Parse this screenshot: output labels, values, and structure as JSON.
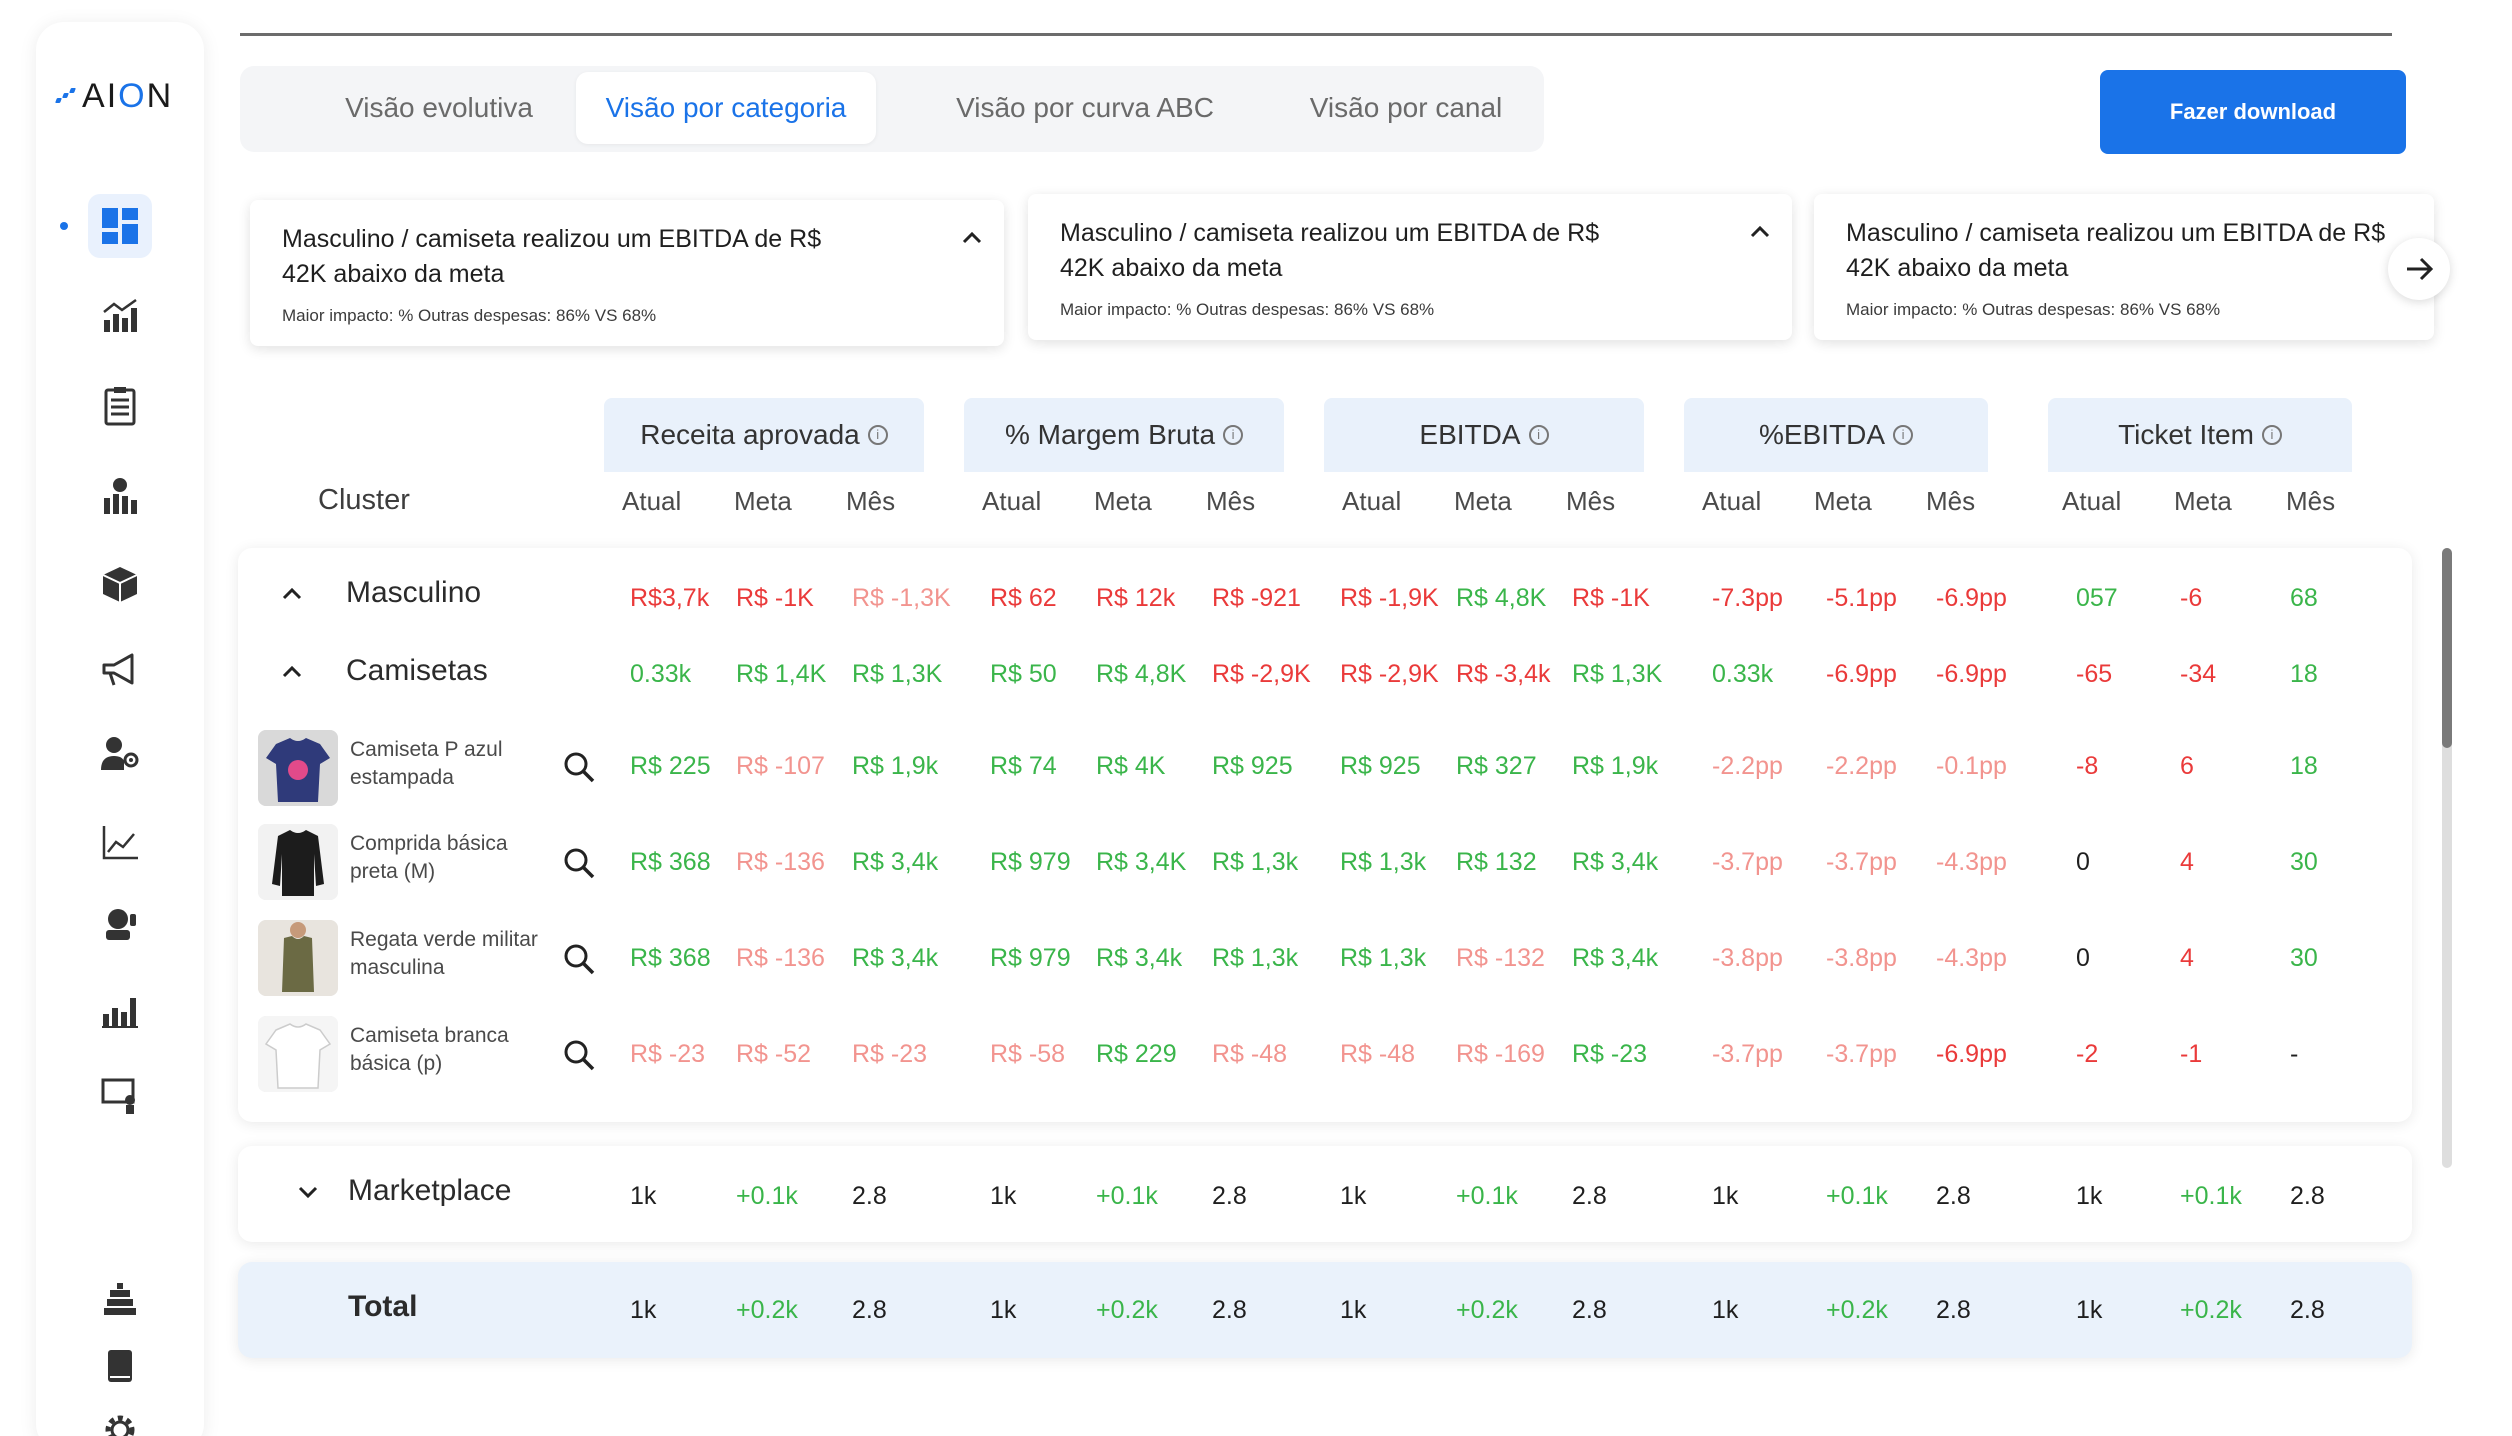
{
  "app": {
    "logo_prefix": "A",
    "logo_mid": "I",
    "logo_o": "O",
    "logo_suffix": "N"
  },
  "sidebar": {
    "icons": [
      "dashboard-icon",
      "chart-bar-icon",
      "report-list-icon",
      "finance-bars-icon",
      "package-icon",
      "megaphone-icon",
      "user-settings-icon",
      "trend-line-icon",
      "support-icon",
      "bar-chart-icon",
      "presentation-icon",
      "stack-icon",
      "book-icon",
      "gear-icon"
    ]
  },
  "tabs": [
    {
      "label": "Visão evolutiva"
    },
    {
      "label": "Visão por categoria"
    },
    {
      "label": "Visão por curva ABC"
    },
    {
      "label": "Visão por canal"
    }
  ],
  "download_label": "Fazer download",
  "insights": [
    {
      "title": "Masculino / camiseta realizou um EBITDA de R$ 42K abaixo da meta",
      "sub": "Maior impacto: % Outras despesas: 86% VS 68%"
    },
    {
      "title": "Masculino / camiseta realizou um EBITDA de R$ 42K abaixo da meta",
      "sub": "Maior impacto: % Outras despesas: 86% VS 68%"
    },
    {
      "title": "Masculino / camiseta realizou um EBITDA de R$ 42K abaixo da meta",
      "sub": "Maior impacto: % Outras despesas: 86% VS 68%"
    }
  ],
  "table": {
    "cluster_label": "Cluster",
    "metrics": [
      "Receita aprovada",
      "% Margem Bruta",
      "EBITDA",
      "%EBITDA",
      "Ticket Item"
    ],
    "subcols": [
      "Atual",
      "Meta",
      "Mês"
    ],
    "groups": [
      {
        "label": "Masculino",
        "values": [
          "R$3,7k",
          "R$ -1K",
          "R$ -1,3K",
          "R$ 62",
          "R$ 12k",
          "R$ -921",
          "R$ -1,9K",
          "R$ 4,8K",
          "R$ -1K",
          "-7.3pp",
          "-5.1pp",
          "-6.9pp",
          "057",
          "-6",
          "68"
        ],
        "colors": [
          "r",
          "r",
          "lr",
          "r",
          "r",
          "r",
          "r",
          "g",
          "r",
          "r",
          "r",
          "r",
          "g",
          "r",
          "g"
        ]
      },
      {
        "label": "Camisetas",
        "values": [
          "0.33k",
          "R$ 1,4K",
          "R$ 1,3K",
          "R$ 50",
          "R$ 4,8K",
          "R$ -2,9K",
          "R$ -2,9K",
          "R$ -3,4k",
          "R$ 1,3K",
          "0.33k",
          "-6.9pp",
          "-6.9pp",
          "-65",
          "-34",
          "18"
        ],
        "colors": [
          "g",
          "g",
          "g",
          "g",
          "g",
          "r",
          "r",
          "r",
          "g",
          "g",
          "r",
          "r",
          "r",
          "r",
          "g"
        ]
      }
    ],
    "products": [
      {
        "name": "Camiseta P azul estampada",
        "values": [
          "R$ 225",
          "R$ -107",
          "R$ 1,9k",
          "R$ 74",
          "R$ 4K",
          "R$ 925",
          "R$ 925",
          "R$ 327",
          "R$ 1,9k",
          "-2.2pp",
          "-2.2pp",
          "-0.1pp",
          "-8",
          "6",
          "18"
        ],
        "colors": [
          "g",
          "lr",
          "g",
          "g",
          "g",
          "g",
          "g",
          "g",
          "g",
          "lr",
          "lr",
          "lr",
          "r",
          "r",
          "g"
        ]
      },
      {
        "name": "Comprida básica preta (M)",
        "values": [
          "R$ 368",
          "R$ -136",
          "R$ 3,4k",
          "R$ 979",
          "R$ 3,4K",
          "R$ 1,3k",
          "R$ 1,3k",
          "R$ 132",
          "R$ 3,4k",
          "-3.7pp",
          "-3.7pp",
          "-4.3pp",
          "0",
          "4",
          "30"
        ],
        "colors": [
          "g",
          "lr",
          "g",
          "g",
          "g",
          "g",
          "g",
          "g",
          "g",
          "lr",
          "lr",
          "lr",
          "k",
          "r",
          "g"
        ]
      },
      {
        "name": "Regata verde militar masculina",
        "values": [
          "R$ 368",
          "R$ -136",
          "R$ 3,4k",
          "R$ 979",
          "R$ 3,4k",
          "R$ 1,3k",
          "R$ 1,3k",
          "R$ -132",
          "R$ 3,4k",
          "-3.8pp",
          "-3.8pp",
          "-4.3pp",
          "0",
          "4",
          "30"
        ],
        "colors": [
          "g",
          "lr",
          "g",
          "g",
          "g",
          "g",
          "g",
          "lr",
          "g",
          "lr",
          "lr",
          "lr",
          "k",
          "r",
          "g"
        ]
      },
      {
        "name": "Camiseta branca básica (p)",
        "values": [
          "R$ -23",
          "R$ -52",
          "R$ -23",
          "R$ -58",
          "R$ 229",
          "R$ -48",
          "R$ -48",
          "R$ -169",
          "R$ -23",
          "-3.7pp",
          "-3.7pp",
          "-6.9pp",
          "-2",
          "-1",
          "-"
        ],
        "colors": [
          "lr",
          "lr",
          "lr",
          "lr",
          "g",
          "lr",
          "lr",
          "lr",
          "g",
          "lr",
          "lr",
          "r",
          "r",
          "r",
          "k"
        ]
      }
    ],
    "marketplace": {
      "label": "Marketplace",
      "values": [
        "1k",
        "+0.1k",
        "2.8",
        "1k",
        "+0.1k",
        "2.8",
        "1k",
        "+0.1k",
        "2.8",
        "1k",
        "+0.1k",
        "2.8",
        "1k",
        "+0.1k",
        "2.8"
      ],
      "colors": [
        "k",
        "g",
        "k",
        "k",
        "g",
        "k",
        "k",
        "g",
        "k",
        "k",
        "g",
        "k",
        "k",
        "g",
        "k"
      ]
    },
    "total": {
      "label": "Total",
      "values": [
        "1k",
        "+0.2k",
        "2.8",
        "1k",
        "+0.2k",
        "2.8",
        "1k",
        "+0.2k",
        "2.8",
        "1k",
        "+0.2k",
        "2.8",
        "1k",
        "+0.2k",
        "2.8"
      ],
      "colors": [
        "k",
        "g",
        "k",
        "k",
        "g",
        "k",
        "k",
        "g",
        "k",
        "k",
        "g",
        "k",
        "k",
        "g",
        "k"
      ]
    }
  }
}
